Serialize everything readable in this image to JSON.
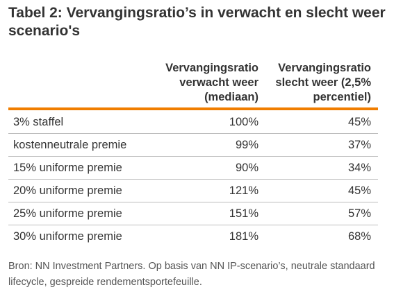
{
  "title": "Tabel 2: Vervangingsratio’s in verwacht en slecht weer scenario's",
  "table": {
    "headers": [
      "",
      "Vervangingsratio verwacht weer (mediaan)",
      "Vervangingsratio slecht weer (2,5% percentiel)"
    ],
    "header_lines": {
      "col1": [
        "Vervangingsratio",
        "verwacht weer",
        "(mediaan)"
      ],
      "col2": [
        "Vervangingsratio",
        "slecht weer (2,5%",
        "percentiel)"
      ]
    },
    "rows": [
      {
        "label": "3% staffel",
        "expected": "100%",
        "bad": "45%"
      },
      {
        "label": "kostenneutrale premie",
        "expected": "99%",
        "bad": "37%"
      },
      {
        "label": "15% uniforme premie",
        "expected": "90%",
        "bad": "34%"
      },
      {
        "label": "20% uniforme premie",
        "expected": "121%",
        "bad": "45%"
      },
      {
        "label": "25% uniforme premie",
        "expected": "151%",
        "bad": "57%"
      },
      {
        "label": "30% uniforme premie",
        "expected": "181%",
        "bad": "68%"
      }
    ]
  },
  "source": "Bron: NN Investment Partners. Op basis van NN IP-scenario’s, neutrale standaard lifecycle, gespreide rendementsportefeuille.",
  "colors": {
    "accent": "#f07d00",
    "text": "#333333",
    "rule": "#bcbcbc"
  }
}
